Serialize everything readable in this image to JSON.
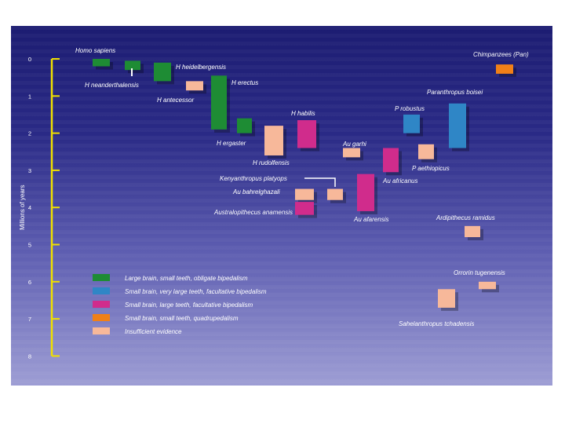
{
  "chart_data": {
    "type": "range-bar",
    "ylabel": "Millions of years",
    "y_ticks": [
      "0",
      "1",
      "2",
      "3",
      "4",
      "5",
      "6",
      "7",
      "8"
    ],
    "ylim": [
      0,
      8
    ],
    "y_direction": "down",
    "colors": {
      "large_brain": "#1e8c34",
      "robust": "#2f86c6",
      "habilis_type": "#d02c8c",
      "quadruped": "#f08018",
      "insufficient": "#f7b89a"
    },
    "legend": [
      {
        "category": "large_brain",
        "label": "Large brain, small teeth, obligate bipedalism"
      },
      {
        "category": "robust",
        "label": "Small brain, very large teeth, facultative bipedalism"
      },
      {
        "category": "habilis_type",
        "label": "Small brain, large teeth, facultative bipedalism"
      },
      {
        "category": "quadruped",
        "label": "Small brain, small teeth, quadrupedalism"
      },
      {
        "category": "insufficient",
        "label": "Insufficient evidence"
      }
    ],
    "species": [
      {
        "name": "Homo sapiens",
        "category": "large_brain",
        "start": 0,
        "end": 0.2
      },
      {
        "name": "H neanderthalensis",
        "category": "large_brain",
        "start": 0.05,
        "end": 0.3
      },
      {
        "name": "H heidelbergensis",
        "category": "large_brain",
        "start": 0.1,
        "end": 0.6
      },
      {
        "name": "H antecessor",
        "category": "insufficient",
        "start": 0.6,
        "end": 0.85
      },
      {
        "name": "H erectus",
        "category": "large_brain",
        "start": 0.45,
        "end": 1.9
      },
      {
        "name": "H ergaster",
        "category": "large_brain",
        "start": 1.6,
        "end": 2.0
      },
      {
        "name": "H rudolfensis",
        "category": "insufficient",
        "start": 1.8,
        "end": 2.6
      },
      {
        "name": "H habilis",
        "category": "habilis_type",
        "start": 1.65,
        "end": 2.4
      },
      {
        "name": "Kenyanthropus platyops",
        "category": "insufficient",
        "start": 3.5,
        "end": 3.8
      },
      {
        "name": "Au bahrelghazali",
        "category": "insufficient",
        "start": 3.5,
        "end": 3.8
      },
      {
        "name": "Australopithecus anamensis",
        "category": "habilis_type",
        "start": 3.85,
        "end": 4.2
      },
      {
        "name": "Au garhi",
        "category": "insufficient",
        "start": 2.4,
        "end": 2.65
      },
      {
        "name": "Au africanus",
        "category": "habilis_type",
        "start": 2.4,
        "end": 3.05
      },
      {
        "name": "Au afarensis",
        "category": "habilis_type",
        "start": 3.1,
        "end": 4.1
      },
      {
        "name": "P robustus",
        "category": "robust",
        "start": 1.5,
        "end": 2.0
      },
      {
        "name": "P aethiopicus",
        "category": "insufficient",
        "start": 2.3,
        "end": 2.7
      },
      {
        "name": "Paranthropus boisei",
        "category": "robust",
        "start": 1.2,
        "end": 2.4
      },
      {
        "name": "Chimpanzees (Pan)",
        "category": "quadruped",
        "start": 0.15,
        "end": 0.4
      },
      {
        "name": "Ardipithecus ramidus",
        "category": "insufficient",
        "start": 4.5,
        "end": 4.8
      },
      {
        "name": "Orrorin tugenensis",
        "category": "insufficient",
        "start": 6.0,
        "end": 6.2
      },
      {
        "name": "Sahelanthropus tchadensis",
        "category": "insufficient",
        "start": 6.2,
        "end": 6.7
      }
    ],
    "connector": {
      "label": "Kenyanthropus platyops",
      "target": "Kenyanthropus platyops"
    }
  }
}
